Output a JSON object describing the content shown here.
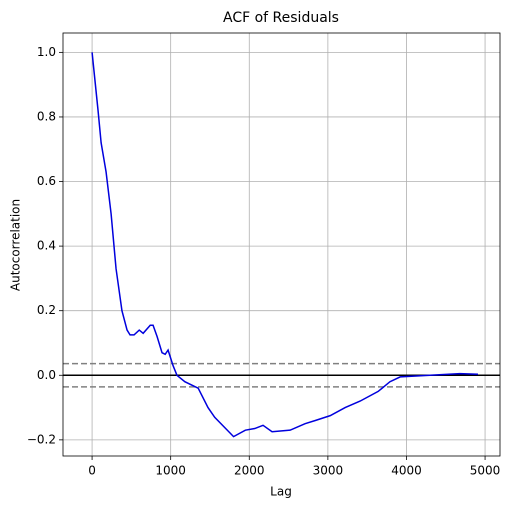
{
  "chart_data": {
    "type": "line",
    "title": "ACF of Residuals",
    "xlabel": "Lag",
    "ylabel": "Autocorrelation",
    "series": [
      {
        "name": "ACF",
        "color": "#0000dd",
        "x": [
          0,
          76,
          115,
          178,
          242,
          305,
          380,
          445,
          483,
          534,
          600,
          650,
          740,
          776,
          827,
          890,
          930,
          967,
          1030,
          1080,
          1180,
          1350,
          1475,
          1560,
          1800,
          1950,
          2070,
          2175,
          2290,
          2520,
          2710,
          2840,
          3030,
          3220,
          3410,
          3640,
          3790,
          3920,
          4300,
          4680,
          4910
        ],
        "values": [
          1.0,
          0.82,
          0.72,
          0.63,
          0.5,
          0.33,
          0.2,
          0.14,
          0.125,
          0.125,
          0.14,
          0.13,
          0.155,
          0.155,
          0.12,
          0.07,
          0.065,
          0.078,
          0.03,
          0.0,
          -0.02,
          -0.04,
          -0.1,
          -0.13,
          -0.19,
          -0.17,
          -0.165,
          -0.155,
          -0.175,
          -0.17,
          -0.15,
          -0.14,
          -0.125,
          -0.1,
          -0.08,
          -0.05,
          -0.02,
          -0.005,
          0.0,
          0.005,
          0.003
        ]
      }
    ],
    "hlines": [
      {
        "value": 0.036,
        "color": "grey",
        "style": "dashed"
      },
      {
        "value": -0.036,
        "color": "grey",
        "style": "dashed"
      },
      {
        "value": 0,
        "color": "black",
        "style": "solid"
      }
    ],
    "xlim": [
      -370,
      5190
    ],
    "xticks": [
      0,
      1000,
      2000,
      3000,
      4000,
      5000
    ],
    "ylim": [
      -0.25,
      1.06
    ],
    "yticks": [
      {
        "value": -0.2,
        "label": "−0.2"
      },
      {
        "value": 0,
        "label": "0.0"
      },
      0.2,
      0.4,
      0.6,
      0.8,
      {
        "value": 1.0,
        "label": "1.0"
      }
    ],
    "grid": true
  }
}
